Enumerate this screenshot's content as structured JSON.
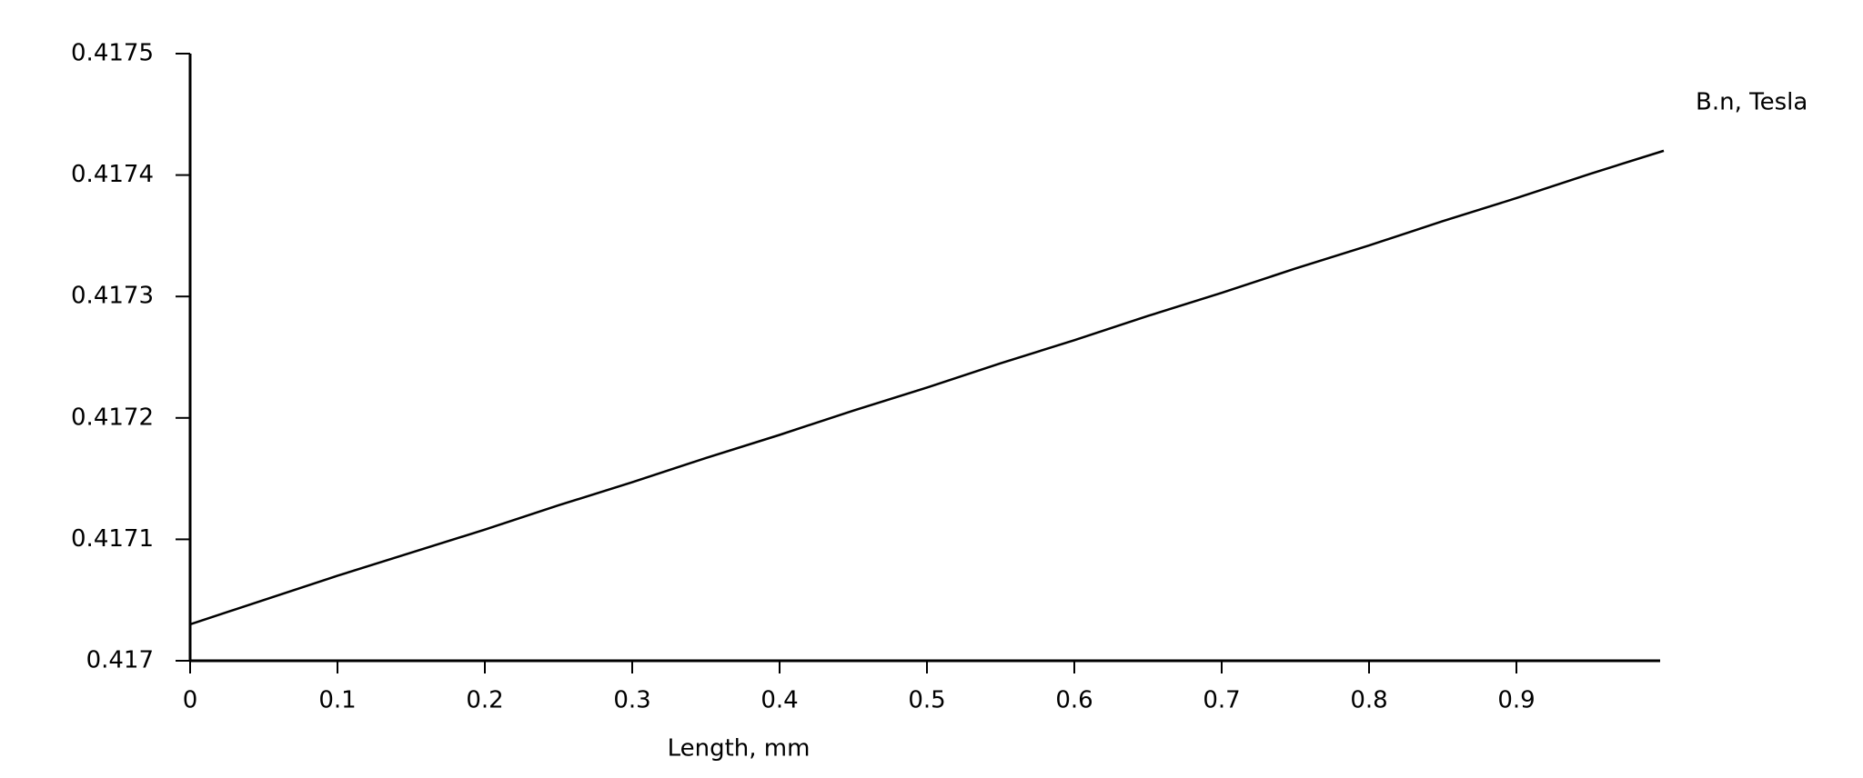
{
  "chart_data": {
    "type": "line",
    "x_label": "Length, mm",
    "x": [
      0,
      0.05,
      0.1,
      0.15,
      0.2,
      0.25,
      0.3,
      0.35,
      0.4,
      0.45,
      0.5,
      0.55,
      0.6,
      0.65,
      0.7,
      0.75,
      0.8,
      0.85,
      0.9,
      0.95,
      1.0
    ],
    "series": [
      {
        "name": "B.n, Tesla",
        "color": "#000000",
        "values": [
          0.41703,
          0.41705,
          0.41707,
          0.417089,
          0.417108,
          0.417128,
          0.417147,
          0.417167,
          0.417186,
          0.417206,
          0.417225,
          0.417245,
          0.417264,
          0.417284,
          0.417303,
          0.417323,
          0.417342,
          0.417362,
          0.417381,
          0.417401,
          0.41742
        ]
      }
    ],
    "xlim": [
      0,
      1
    ],
    "ylim": [
      0.417,
      0.4175
    ],
    "xticks": [
      0,
      0.1,
      0.2,
      0.3,
      0.4,
      0.5,
      0.6,
      0.7,
      0.8,
      0.9
    ],
    "yticks": [
      0.417,
      0.4171,
      0.4172,
      0.4173,
      0.4174,
      0.4175
    ],
    "grid": false
  }
}
